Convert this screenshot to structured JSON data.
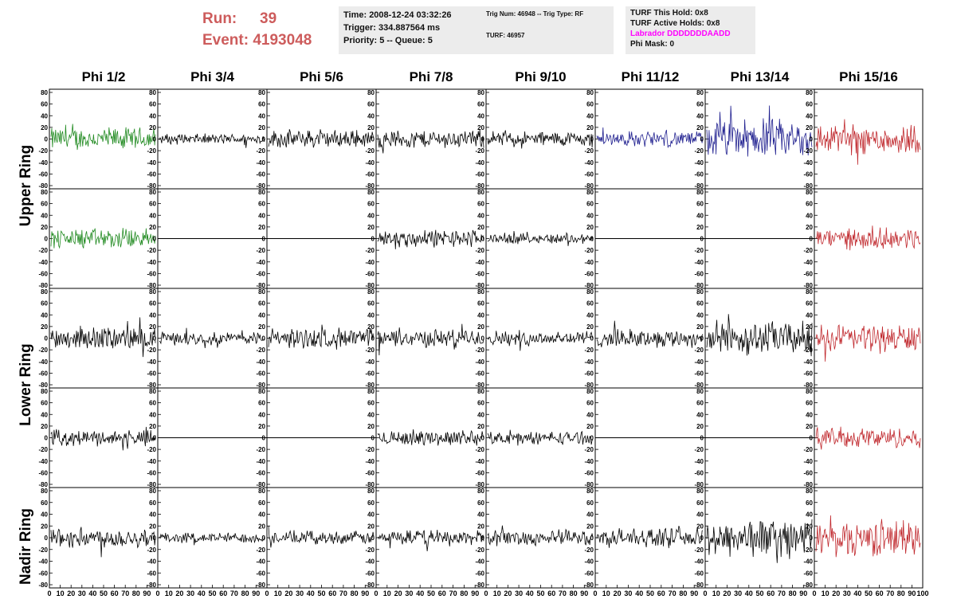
{
  "header": {
    "run_label": "Run:",
    "run_value": "39",
    "event_label": "Event:",
    "event_value": "4193048"
  },
  "info_time": {
    "time": "Time: 2008-12-24 03:32:26",
    "trigger": "Trigger: 334.887564 ms",
    "priority": "Priority: 5 -- Queue: 5"
  },
  "info_trig": {
    "trig": "Trig Num: 46948 -- Trig Type: RF",
    "turf": "TURF: 46957"
  },
  "info_turf": {
    "this_hold": "TURF This Hold: 0x8",
    "active_holds": "TURF Active Holds: 0x8",
    "labrador": "Labrador DDDDDDDAADD",
    "phi_mask": "Phi Mask: 0"
  },
  "columns": [
    "Phi 1/2",
    "Phi 3/4",
    "Phi 5/6",
    "Phi 7/8",
    "Phi 9/10",
    "Phi 11/12",
    "Phi 13/14",
    "Phi 15/16"
  ],
  "rings": {
    "upper": "Upper Ring",
    "lower": "Lower Ring",
    "nadir": "Nadir Ring"
  },
  "y_ticks": [
    "80",
    "60",
    "40",
    "20",
    "0",
    "-20",
    "-40",
    "-60",
    "-80"
  ],
  "x_ticks": [
    "0",
    "10",
    "20",
    "30",
    "40",
    "50",
    "60",
    "70",
    "80",
    "90",
    "100"
  ],
  "colors": {
    "green": "#228b22",
    "blue": "#1f1f8f",
    "red": "#c0282d",
    "black": "#000000",
    "run_text": "#cd5c5c",
    "labrador": "#ff00ff"
  },
  "panels": [
    [
      "green",
      "black",
      "black",
      "black",
      "black",
      "blue",
      "blue",
      "red"
    ],
    [
      "green",
      "flat",
      "flat",
      "black",
      "black",
      "flat",
      "flat",
      "red"
    ],
    [
      "black",
      "black",
      "black",
      "black",
      "black",
      "black",
      "black",
      "red"
    ],
    [
      "black",
      "flat",
      "flat",
      "black",
      "black",
      "flat",
      "flat",
      "red"
    ],
    [
      "black",
      "black",
      "black",
      "black",
      "black",
      "black",
      "black",
      "red"
    ]
  ],
  "amplitudes": [
    [
      18,
      8,
      14,
      14,
      12,
      12,
      30,
      24
    ],
    [
      16,
      0,
      0,
      14,
      8,
      0,
      0,
      16
    ],
    [
      18,
      10,
      16,
      14,
      12,
      14,
      26,
      22
    ],
    [
      12,
      0,
      0,
      12,
      10,
      0,
      0,
      16
    ],
    [
      16,
      8,
      10,
      12,
      12,
      14,
      30,
      28
    ]
  ]
}
